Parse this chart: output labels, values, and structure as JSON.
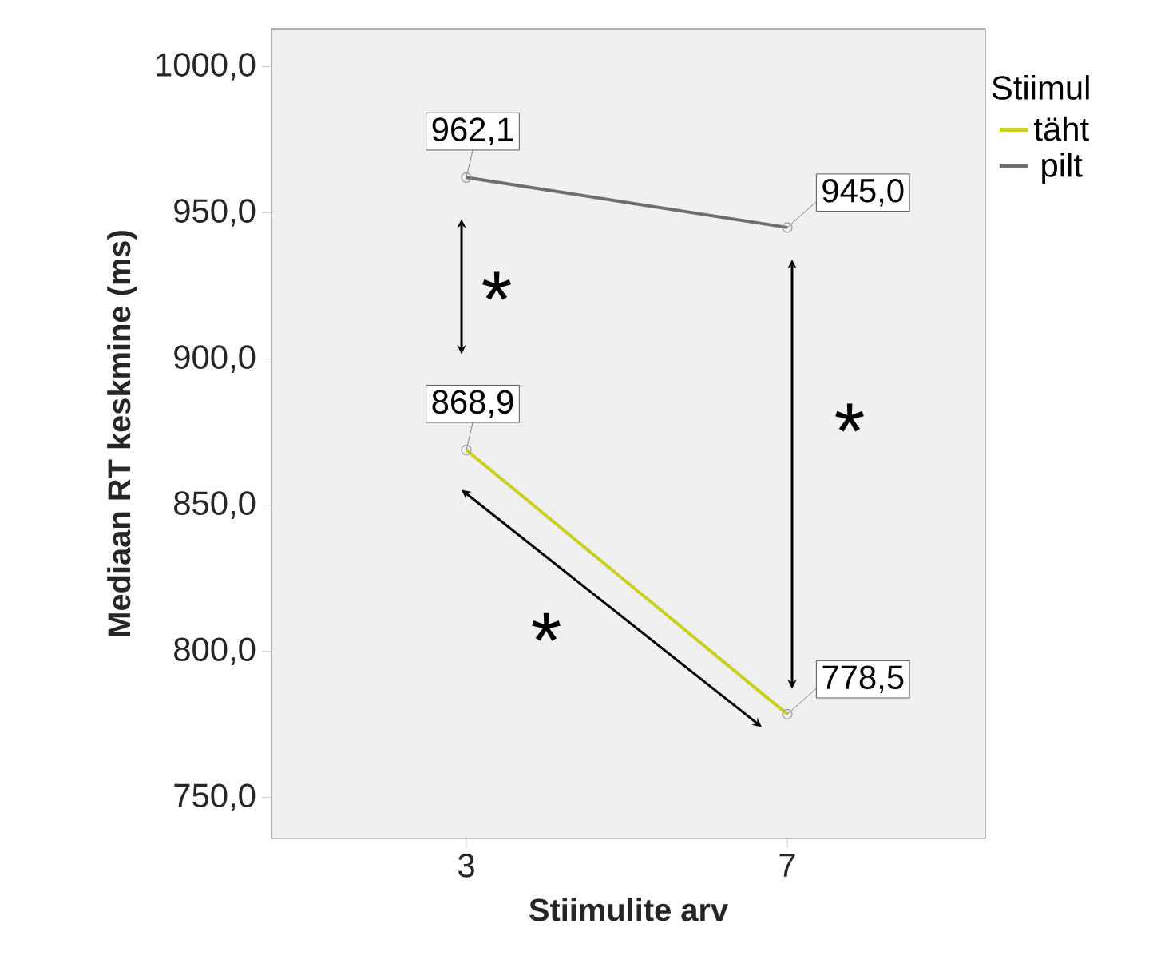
{
  "chart_data": {
    "type": "line",
    "xlabel": "Stiimulite arv",
    "ylabel": "Mediaan RT keskmine (ms)",
    "legend_title": "Stiimul",
    "categories": [
      "3",
      "7"
    ],
    "series": [
      {
        "name": "täht",
        "color": "#c8d020",
        "values": [
          868.9,
          778.5
        ],
        "value_labels": [
          "868,9",
          "778,5"
        ]
      },
      {
        "name": "pilt",
        "color": "#6e6e6e",
        "values": [
          962.1,
          945.0
        ],
        "value_labels": [
          "962,1",
          "945,0"
        ]
      }
    ],
    "ylim": [
      736,
      1013
    ],
    "yticks": [
      {
        "value": 750,
        "label": "750,0"
      },
      {
        "value": 800,
        "label": "800,0"
      },
      {
        "value": 850,
        "label": "850,0"
      },
      {
        "value": 900,
        "label": "900,0"
      },
      {
        "value": 950,
        "label": "950,0"
      },
      {
        "value": 1000,
        "label": "1000,0"
      }
    ],
    "annotations": [
      "*",
      "*",
      "*"
    ],
    "legend": "top right",
    "marker": "circle",
    "line_style": "solid",
    "grid": false
  }
}
